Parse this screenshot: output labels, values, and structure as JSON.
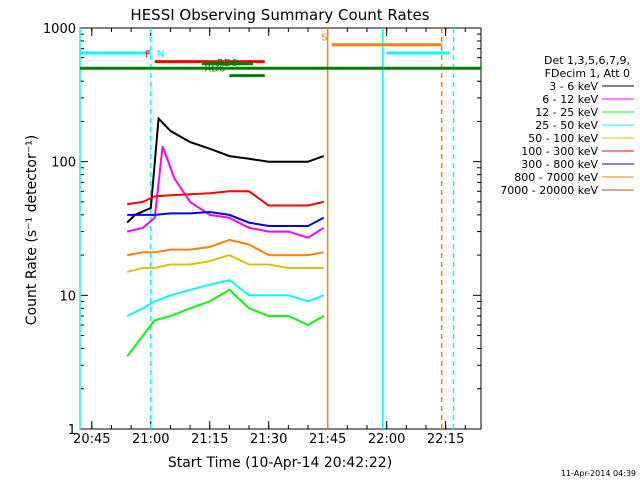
{
  "chart_data": {
    "type": "line",
    "title": "HESSI Observing Summary Count Rates",
    "xlabel": "Start Time (10-Apr-14 20:42:22)",
    "ylabel": "Count Rate (s⁻¹ detector⁻¹)",
    "ylim": [
      1,
      1000
    ],
    "y_scale": "log",
    "xlim": [
      "20:42",
      "22:24"
    ],
    "x_ticks": [
      "20:45",
      "21:00",
      "21:15",
      "21:30",
      "21:45",
      "22:00",
      "22:15"
    ],
    "y_ticks": [
      "1",
      "10",
      "100",
      "1000"
    ],
    "legend_title": [
      "Det 1,3,5,6,7,9,",
      "FDecim 1, Att 0"
    ],
    "legend_position": "right",
    "series": [
      {
        "name": "3 - 6 keV",
        "color": "#000000",
        "x": [
          "20:54",
          "20:56",
          "21:00",
          "21:02",
          "21:05",
          "21:10",
          "21:15",
          "21:20",
          "21:25",
          "21:30",
          "21:35",
          "21:40",
          "21:44"
        ],
        "values": [
          35,
          40,
          45,
          210,
          170,
          140,
          125,
          110,
          105,
          100,
          100,
          100,
          110
        ]
      },
      {
        "name": "6 - 12 keV",
        "color": "#ff00ff",
        "x": [
          "20:54",
          "20:58",
          "21:01",
          "21:03",
          "21:06",
          "21:10",
          "21:15",
          "21:20",
          "21:25",
          "21:30",
          "21:35",
          "21:40",
          "21:44"
        ],
        "values": [
          30,
          32,
          38,
          130,
          75,
          50,
          40,
          38,
          32,
          30,
          30,
          27,
          32
        ]
      },
      {
        "name": "12 - 25 keV",
        "color": "#00ff00",
        "x": [
          "20:54",
          "20:58",
          "21:01",
          "21:05",
          "21:10",
          "21:15",
          "21:20",
          "21:25",
          "21:30",
          "21:35",
          "21:40",
          "21:44"
        ],
        "values": [
          3.5,
          5,
          6.5,
          7,
          8,
          9,
          11,
          8,
          7,
          7,
          6,
          7
        ]
      },
      {
        "name": "25 - 50 keV",
        "color": "#00ffff",
        "x": [
          "20:54",
          "20:58",
          "21:01",
          "21:05",
          "21:10",
          "21:15",
          "21:20",
          "21:25",
          "21:30",
          "21:35",
          "21:40",
          "21:44"
        ],
        "values": [
          7,
          8,
          9,
          10,
          11,
          12,
          13,
          10,
          10,
          10,
          9,
          10
        ]
      },
      {
        "name": "50 - 100 keV",
        "color": "#e0c000",
        "x": [
          "20:54",
          "20:58",
          "21:01",
          "21:05",
          "21:10",
          "21:15",
          "21:20",
          "21:25",
          "21:30",
          "21:35",
          "21:40",
          "21:44"
        ],
        "values": [
          15,
          16,
          16,
          17,
          17,
          18,
          20,
          17,
          17,
          16,
          16,
          16
        ]
      },
      {
        "name": "100 - 300 keV",
        "color": "#ff0000",
        "x": [
          "20:54",
          "20:58",
          "21:01",
          "21:05",
          "21:10",
          "21:15",
          "21:20",
          "21:25",
          "21:30",
          "21:35",
          "21:40",
          "21:44"
        ],
        "values": [
          48,
          50,
          55,
          56,
          57,
          58,
          60,
          60,
          47,
          47,
          47,
          50
        ]
      },
      {
        "name": "300 - 800 keV",
        "color": "#0000ff",
        "x": [
          "20:54",
          "20:58",
          "21:01",
          "21:05",
          "21:10",
          "21:15",
          "21:20",
          "21:25",
          "21:30",
          "21:35",
          "21:40",
          "21:44"
        ],
        "values": [
          40,
          40,
          40,
          41,
          41,
          42,
          40,
          35,
          33,
          33,
          33,
          38
        ]
      },
      {
        "name": "800 - 7000 keV",
        "color": "#ff8000",
        "x": [
          "20:54",
          "20:58",
          "21:01",
          "21:05",
          "21:10",
          "21:15",
          "21:20",
          "21:25",
          "21:30",
          "21:35",
          "21:40",
          "21:44"
        ],
        "values": [
          20,
          21,
          21,
          22,
          22,
          23,
          26,
          24,
          20,
          20,
          20,
          21
        ]
      },
      {
        "name": "7000 - 20000 keV",
        "color": "#a06000",
        "x": [],
        "values": []
      }
    ],
    "state_bars": [
      {
        "label": "N",
        "color": "#00ffff",
        "segments": [
          [
            "20:42",
            "21:00"
          ],
          [
            "22:00",
            "22:16"
          ]
        ],
        "level": 650
      },
      {
        "label": "S",
        "color": "#ff8000",
        "segments": [
          [
            "21:46",
            "22:14"
          ]
        ],
        "level": 750
      },
      {
        "label": "F",
        "color": "#ff0000",
        "segments": [
          [
            "21:01",
            "21:29"
          ]
        ],
        "level": 560
      },
      {
        "label": "RD0",
        "color": "#008000",
        "segments": [
          [
            "21:13",
            "21:26"
          ]
        ],
        "level": 540
      },
      {
        "label": "RD6",
        "color": "#008000",
        "segments": [
          [
            "21:20",
            "21:29"
          ]
        ],
        "level": 440
      },
      {
        "label": "",
        "color": "#008000",
        "segments": [
          [
            "20:42",
            "22:24"
          ]
        ],
        "level": 500
      }
    ],
    "vertical_lines": [
      {
        "time": "20:42",
        "color": "#00ffff",
        "dashed": false
      },
      {
        "time": "21:00",
        "color": "#00ffff",
        "dashed": true
      },
      {
        "time": "21:45",
        "color": "#ff8000",
        "dashed": false
      },
      {
        "time": "21:59",
        "color": "#00ffff",
        "dashed": false
      },
      {
        "time": "22:14",
        "color": "#ff8000",
        "dashed": true
      },
      {
        "time": "22:17",
        "color": "#00ffff",
        "dashed": true
      }
    ],
    "footer_timestamp": "11-Apr-2014 04:39"
  }
}
